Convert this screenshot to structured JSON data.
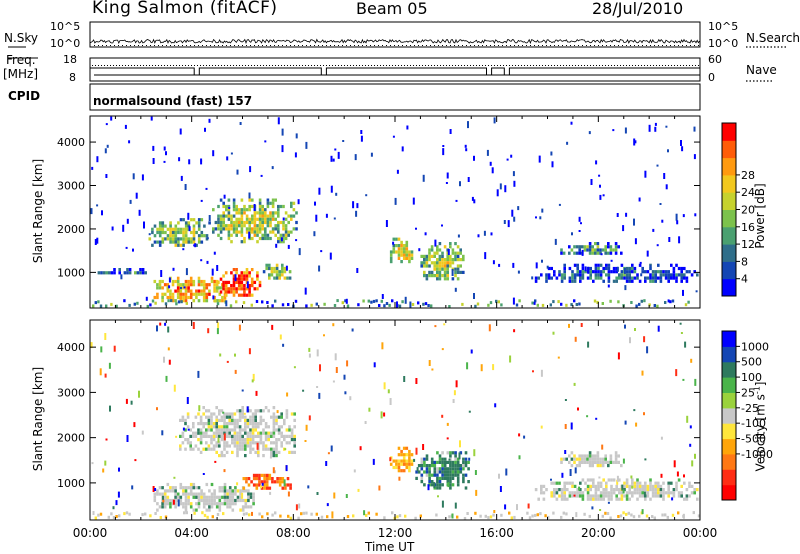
{
  "header": {
    "station": "King Salmon (fitACF)",
    "beam": "Beam 05",
    "date": "28/Jul/2010"
  },
  "side_labels": {
    "nsky": "N.Sky",
    "nsearch": "N.Search",
    "freq_line1": "Freq.",
    "freq_line2": "[MHz]",
    "nave": "Nave",
    "cpid": "CPID"
  },
  "noise_axis": {
    "left_ticks": [
      "10^5",
      "10^0"
    ],
    "right_ticks": [
      "10^5",
      "10^0"
    ]
  },
  "freq_axis": {
    "left_ticks": [
      "18",
      "8"
    ],
    "right_ticks": [
      "60",
      "0"
    ]
  },
  "cpid_text": "normalsound (fast) 157",
  "xaxis": {
    "label": "Time UT",
    "ticks": [
      "00:00",
      "04:00",
      "08:00",
      "12:00",
      "16:00",
      "20:00",
      "00:00"
    ]
  },
  "colors": {
    "power": [
      "#0000ff",
      "#1446b4",
      "#2f6e8a",
      "#4aa070",
      "#7cc24c",
      "#c6d22e",
      "#f2c81e",
      "#ff9a10",
      "#ff5c08",
      "#ff0000"
    ],
    "velocity": [
      "#0000ff",
      "#1446b4",
      "#2e7a5e",
      "#4ab44a",
      "#9ad23c",
      "#c8c8c8",
      "#ffe63c",
      "#ffa50a",
      "#ff7814",
      "#ff2d14",
      "#ff0000"
    ]
  },
  "chart_data": [
    {
      "type": "heatmap",
      "title": "Power",
      "ylabel": "Slant Range [km]",
      "xlabel": "",
      "xlim_hours": [
        0,
        24
      ],
      "ylim": [
        180,
        4600
      ],
      "yticks": [
        "1000",
        "2000",
        "3000",
        "4000"
      ],
      "colorbar": {
        "label": "Power [dB]",
        "range": [
          0,
          32
        ],
        "ticks": [
          "4",
          "8",
          "12",
          "16",
          "20",
          "24",
          "28"
        ]
      },
      "echo_regions": [
        {
          "t0": 2.3,
          "t1": 4.8,
          "r0": 1550,
          "r1": 2250,
          "level": 0.5
        },
        {
          "t0": 4.8,
          "t1": 8.2,
          "r0": 1650,
          "r1": 2700,
          "level": 0.55
        },
        {
          "t0": 2.5,
          "t1": 5.5,
          "r0": 300,
          "r1": 900,
          "level": 0.75
        },
        {
          "t0": 5.0,
          "t1": 6.8,
          "r0": 400,
          "r1": 1100,
          "level": 0.95
        },
        {
          "t0": 6.8,
          "t1": 8.0,
          "r0": 800,
          "r1": 1200,
          "level": 0.55
        },
        {
          "t0": 0.3,
          "t1": 2.5,
          "r0": 900,
          "r1": 1100,
          "level": 0.2
        },
        {
          "t0": 11.8,
          "t1": 12.8,
          "r0": 1200,
          "r1": 1800,
          "level": 0.6
        },
        {
          "t0": 13.0,
          "t1": 14.8,
          "r0": 800,
          "r1": 1700,
          "level": 0.5
        },
        {
          "t0": 18.5,
          "t1": 21.0,
          "r0": 1350,
          "r1": 1700,
          "level": 0.35
        },
        {
          "t0": 17.5,
          "t1": 24.0,
          "r0": 700,
          "r1": 1200,
          "level": 0.2
        }
      ]
    },
    {
      "type": "heatmap",
      "title": "Velocity",
      "ylabel": "Slant Range [km]",
      "xlabel": "Time UT",
      "xlim_hours": [
        0,
        24
      ],
      "ylim": [
        180,
        4600
      ],
      "yticks": [
        "1000",
        "2000",
        "3000",
        "4000"
      ],
      "colorbar": {
        "label": "Velocity [m s^-1]",
        "ticks": [
          "1000",
          "500",
          "100",
          "25",
          "-25",
          "-100",
          "-500",
          "-1000"
        ]
      },
      "echo_regions": [
        {
          "t0": 3.5,
          "t1": 8.2,
          "r0": 1500,
          "r1": 2700,
          "vel": "grey"
        },
        {
          "t0": 2.5,
          "t1": 6.5,
          "r0": 300,
          "r1": 1000,
          "vel": "grey"
        },
        {
          "t0": 6.0,
          "t1": 8.0,
          "r0": 800,
          "r1": 1200,
          "vel": "red"
        },
        {
          "t0": 11.8,
          "t1": 12.8,
          "r0": 1200,
          "r1": 1800,
          "vel": "orange"
        },
        {
          "t0": 12.8,
          "t1": 15.0,
          "r0": 800,
          "r1": 1700,
          "vel": "green"
        },
        {
          "t0": 18.5,
          "t1": 21.0,
          "r0": 1300,
          "r1": 1700,
          "vel": "grey"
        },
        {
          "t0": 17.5,
          "t1": 24.0,
          "r0": 600,
          "r1": 1100,
          "vel": "grey"
        }
      ]
    }
  ]
}
